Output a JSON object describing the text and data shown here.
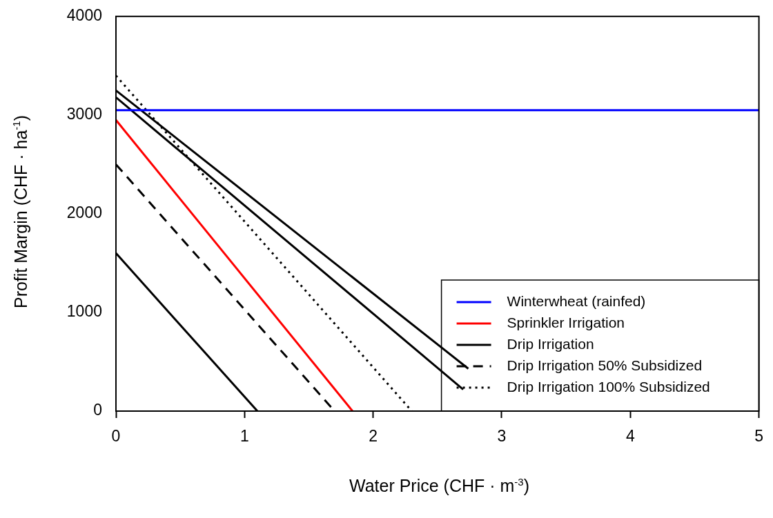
{
  "chart_data": {
    "type": "line",
    "xlabel": "Water Price (CHF · m$^{-3}$)",
    "ylabel": "Profit Margin (CHF · ha$^{-1}$)",
    "xlim": [
      0,
      5
    ],
    "xticks": [
      0,
      1,
      2,
      3,
      4,
      5
    ],
    "ylim": [
      0,
      4000
    ],
    "yticks": [
      0,
      1000,
      2000,
      3000,
      4000
    ],
    "grid": false,
    "legend": "bottom right",
    "marker": "none",
    "series": [
      {
        "name": "Winterwheat (rainfed)",
        "color": "#0000ff",
        "line_style": "solid",
        "x": [
          0,
          5
        ],
        "values": [
          3050,
          3050
        ]
      },
      {
        "name": "Sprinkler Irrigation",
        "color": "#ff0000",
        "line_style": "solid",
        "x": [
          0,
          1.84
        ],
        "values": [
          2950,
          0
        ]
      },
      {
        "name": "Drip Irrigation",
        "color": "#000000",
        "line_style": "solid",
        "x": [
          0,
          2.74
        ],
        "values": [
          3250,
          430
        ]
      },
      {
        "color": "#000000",
        "line_style": "solid",
        "x": [
          0,
          2.7
        ],
        "values": [
          3180,
          220
        ]
      },
      {
        "color": "#000000",
        "line_style": "solid",
        "x": [
          0,
          1.1
        ],
        "values": [
          1600,
          0
        ]
      },
      {
        "name": "Drip Irrigation 50% Subsidized",
        "color": "#000000",
        "line_style": "dashed",
        "x": [
          0,
          1.7
        ],
        "values": [
          2500,
          0
        ]
      },
      {
        "name": "Drip Irrigation 100% Subsidized",
        "color": "#000000",
        "line_style": "dotted",
        "x": [
          0,
          2.3
        ],
        "values": [
          3400,
          0
        ]
      }
    ]
  }
}
